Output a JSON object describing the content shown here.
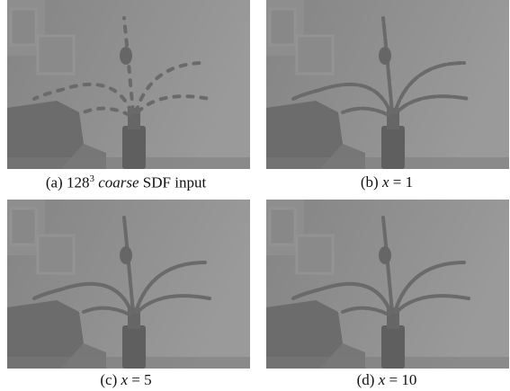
{
  "panels": [
    {
      "label": "(a)",
      "number": "128",
      "exponent": "3",
      "emphasis": "coarse",
      "text": "SDF input"
    },
    {
      "label": "(b)",
      "variable": "x",
      "text": "= 1"
    },
    {
      "label": "(c)",
      "variable": "x",
      "text": "= 5"
    },
    {
      "label": "(d)",
      "variable": "x",
      "text": "= 10"
    }
  ]
}
